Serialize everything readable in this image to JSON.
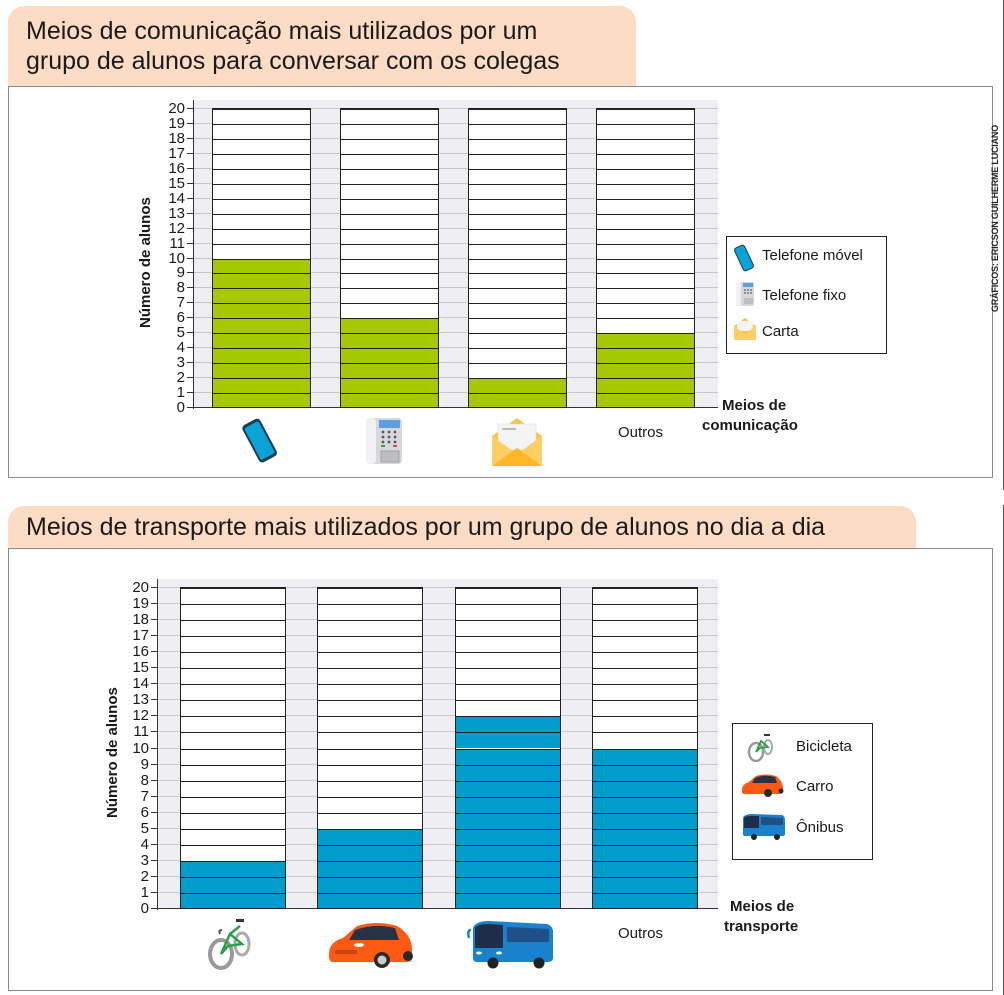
{
  "charts": [
    {
      "title_line1": "Meios de comunicação mais utilizados por um",
      "title_line2": "grupo de alunos para conversar com os colegas",
      "ylabel": "Número de alunos",
      "xlabel_line1": "Meios de",
      "xlabel_line2": "comunicação",
      "categories": [
        "Telefone móvel",
        "Telefone fixo",
        "Carta",
        "Outros"
      ],
      "other_label": "Outros",
      "bar_color": "#a5c800",
      "legend": [
        {
          "label": "Telefone móvel",
          "icon": "mobile-phone-icon"
        },
        {
          "label": "Telefone fixo",
          "icon": "landline-phone-icon"
        },
        {
          "label": "Carta",
          "icon": "envelope-icon"
        }
      ]
    },
    {
      "title": "Meios de transporte mais utilizados por um grupo de alunos no dia a dia",
      "ylabel": "Número de alunos",
      "xlabel_line1": "Meios de",
      "xlabel_line2": "transporte",
      "categories": [
        "Bicicleta",
        "Carro",
        "Ônibus",
        "Outros"
      ],
      "other_label": "Outros",
      "bar_color": "#009ccc",
      "legend": [
        {
          "label": "Bicicleta",
          "icon": "bicycle-icon"
        },
        {
          "label": "Carro",
          "icon": "car-icon"
        },
        {
          "label": "Ônibus",
          "icon": "bus-icon"
        }
      ]
    }
  ],
  "credit": "GRÁFICOS: ERICSON GUILHERME LUCIANO",
  "chart_data": [
    {
      "type": "bar",
      "title": "Meios de comunicação mais utilizados por um grupo de alunos para conversar com os colegas",
      "categories": [
        "Telefone móvel",
        "Telefone fixo",
        "Carta",
        "Outros"
      ],
      "values": [
        10,
        6,
        2,
        5
      ],
      "xlabel": "Meios de comunicação",
      "ylabel": "Número de alunos",
      "ylim": [
        0,
        20
      ],
      "yticks": [
        0,
        1,
        2,
        3,
        4,
        5,
        6,
        7,
        8,
        9,
        10,
        11,
        12,
        13,
        14,
        15,
        16,
        17,
        18,
        19,
        20
      ],
      "grid": true,
      "legend_position": "right",
      "legend": [
        "Telefone móvel",
        "Telefone fixo",
        "Carta"
      ],
      "color": "#a5c800"
    },
    {
      "type": "bar",
      "title": "Meios de transporte mais utilizados por um grupo de alunos no dia a dia",
      "categories": [
        "Bicicleta",
        "Carro",
        "Ônibus",
        "Outros"
      ],
      "values": [
        3,
        5,
        12,
        10
      ],
      "xlabel": "Meios de transporte",
      "ylabel": "Número de alunos",
      "ylim": [
        0,
        20
      ],
      "yticks": [
        0,
        1,
        2,
        3,
        4,
        5,
        6,
        7,
        8,
        9,
        10,
        11,
        12,
        13,
        14,
        15,
        16,
        17,
        18,
        19,
        20
      ],
      "grid": true,
      "legend_position": "right",
      "legend": [
        "Bicicleta",
        "Carro",
        "Ônibus"
      ],
      "color": "#009ccc"
    }
  ]
}
